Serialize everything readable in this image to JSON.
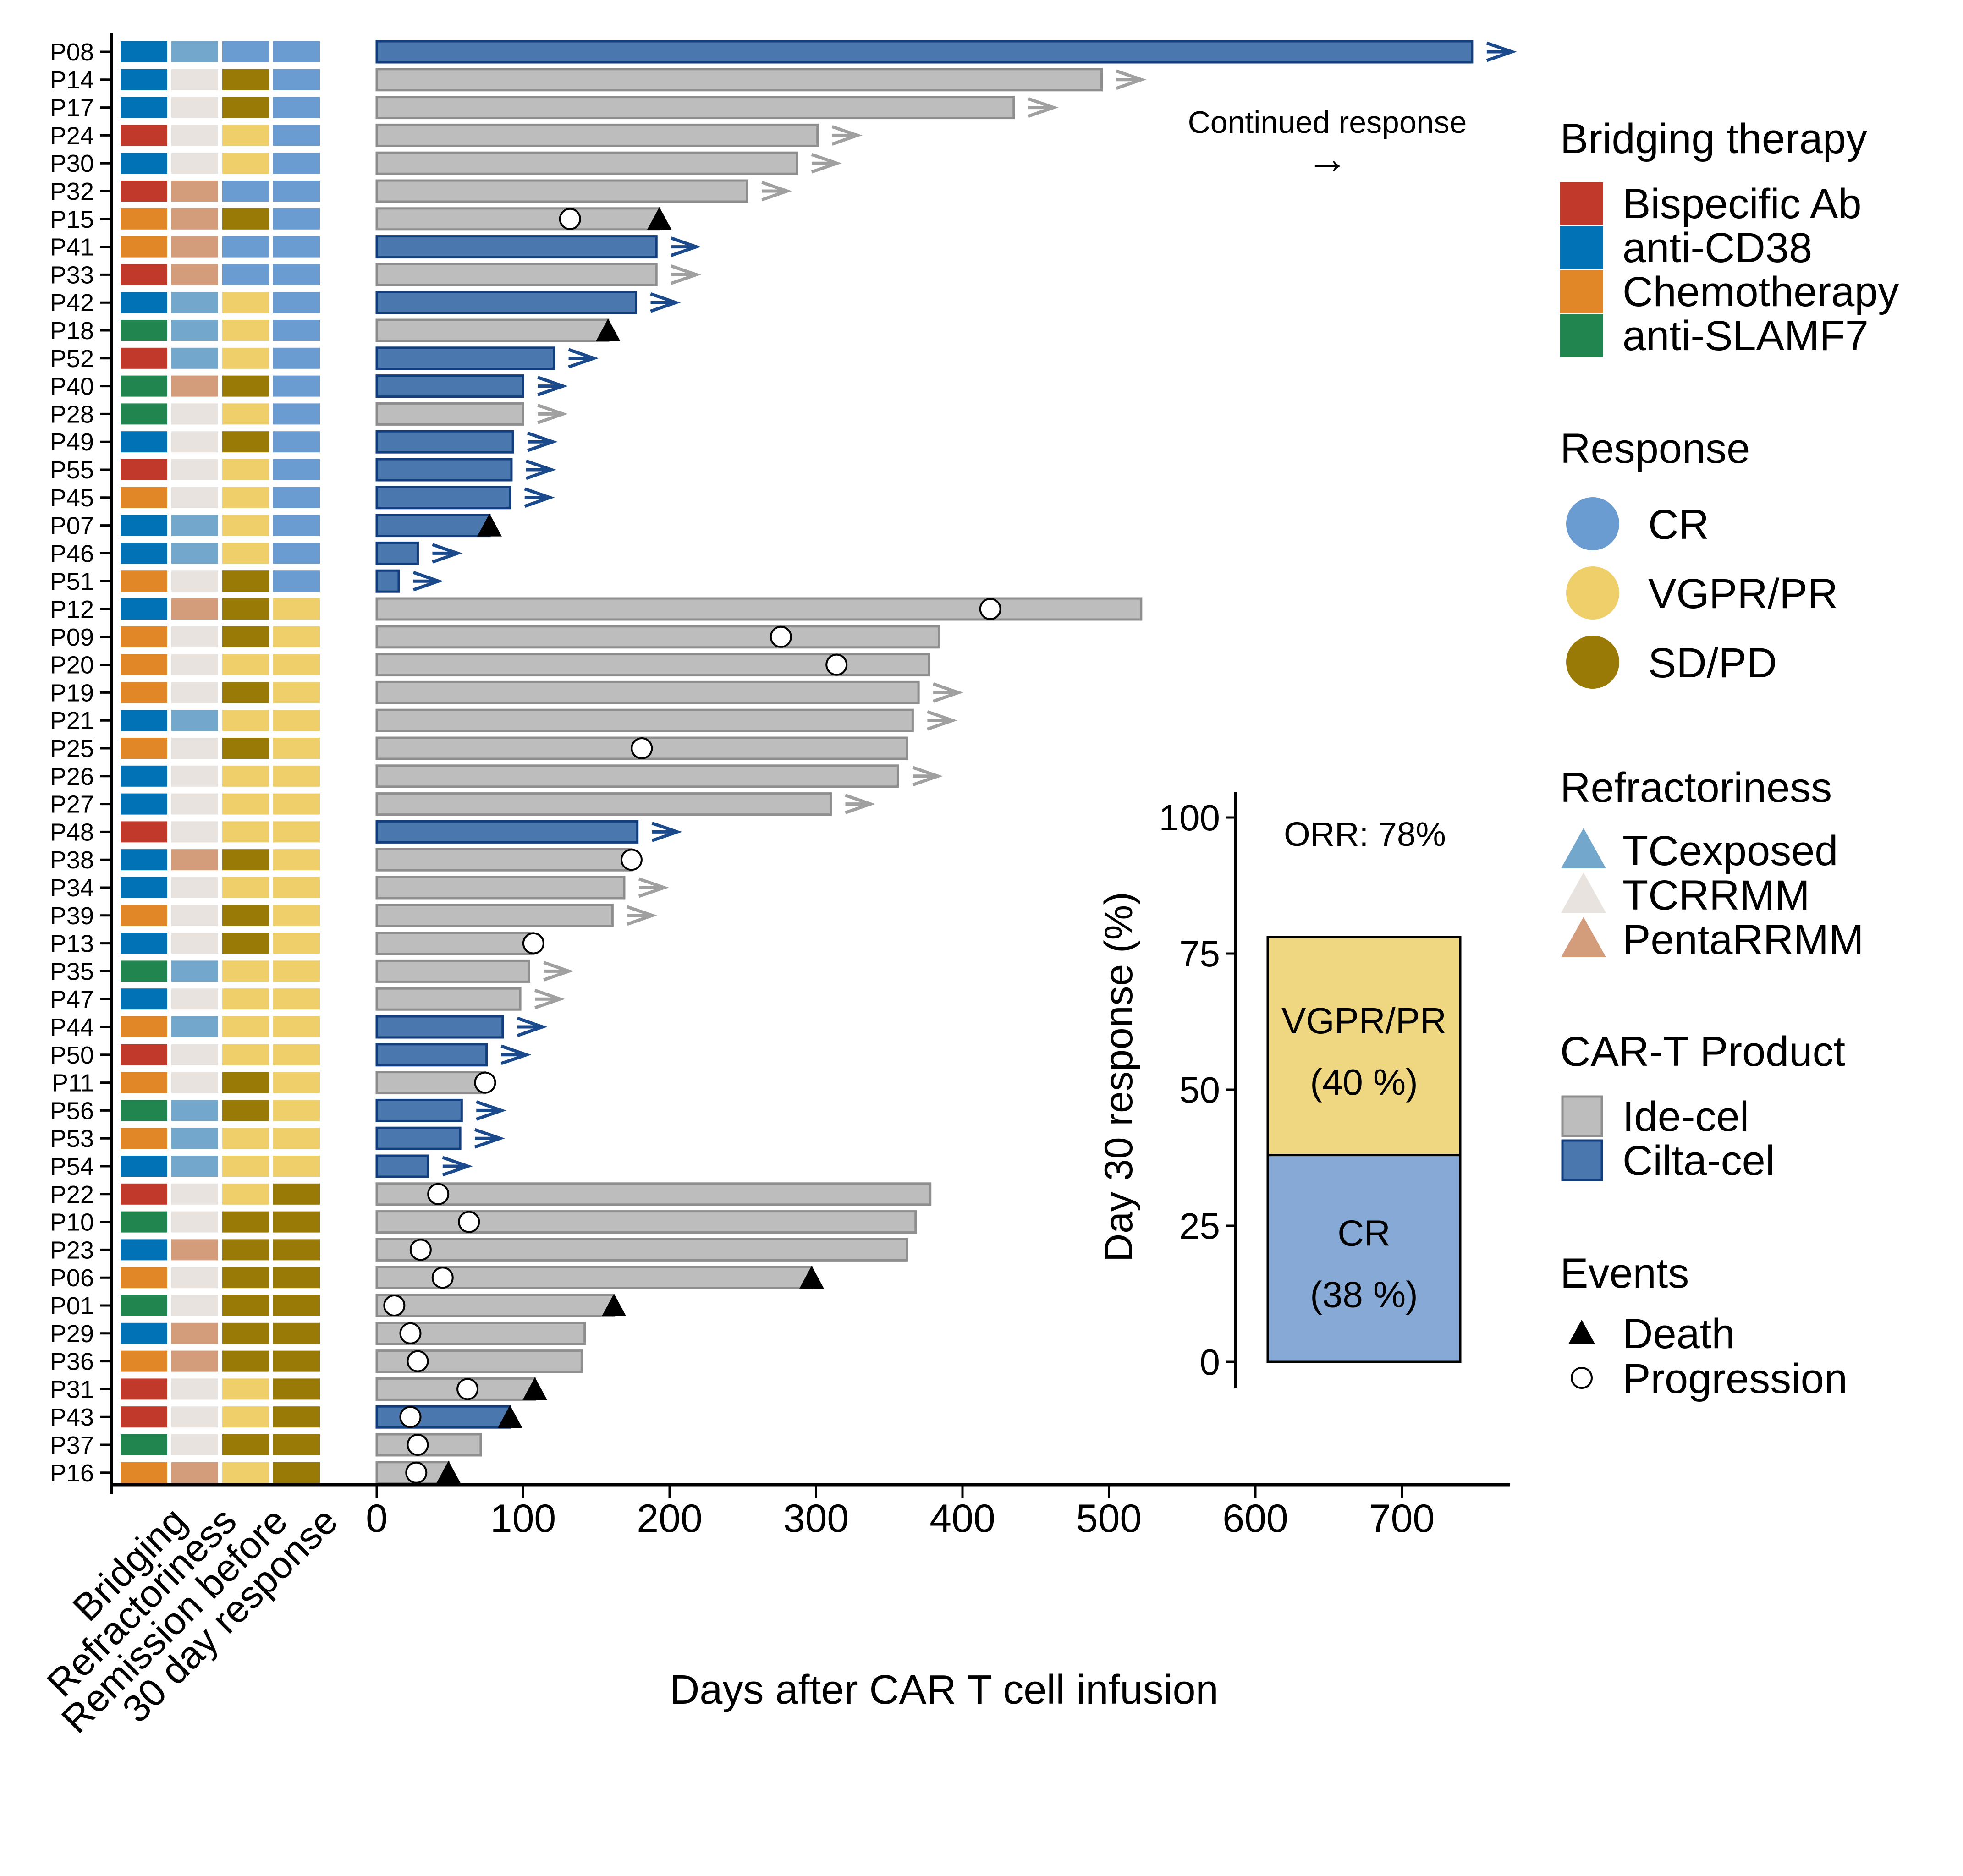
{
  "chart_data": [
    {
      "type": "bar",
      "orientation": "horizontal",
      "xlabel": "Days after CAR T cell infusion",
      "ylabel": "",
      "xlim": [
        0,
        780
      ],
      "xticks": [
        0,
        100,
        200,
        300,
        400,
        500,
        600,
        700
      ],
      "annotation": "Continued response",
      "annotation_arrow": "→",
      "heatmap_column_labels": [
        "Bridging",
        "Refractoriness",
        "Remission before",
        "30 day response"
      ],
      "colors": {
        "bridging": {
          "Bispecific Ab": "#C0392B",
          "anti-CD38": "#0072B5",
          "Chemotherapy": "#E18727",
          "anti-SLAMF7": "#20854E"
        },
        "response": {
          "CR": "#6A9BD1",
          "VGPR/PR": "#EFCF6A",
          "SD/PD": "#9A7A06"
        },
        "refractoriness": {
          "TCexposed": "#74A7CC",
          "TCRRMM": "#E8E3DF",
          "PentaRRMM": "#D39C7A"
        },
        "product": {
          "Ide-cel": "#BDBDBD",
          "Cilta-cel": "#4A77AD"
        },
        "product_stroke": {
          "Ide-cel": "#8E8E8E",
          "Cilta-cel": "#123E7E"
        },
        "arrow": {
          "Ide-cel": "#A0A0A0",
          "Cilta-cel": "#1A4A8C"
        }
      },
      "patients": [
        {
          "id": "P08",
          "bridging": "anti-CD38",
          "refractoriness": "TCexposed",
          "remission_before": "CR",
          "response30": "CR",
          "product": "Cilta-cel",
          "days": 748,
          "continued": true,
          "progression": null,
          "death": null
        },
        {
          "id": "P14",
          "bridging": "anti-CD38",
          "refractoriness": "TCRRMM",
          "remission_before": "SD/PD",
          "response30": "CR",
          "product": "Ide-cel",
          "days": 495,
          "continued": true,
          "progression": null,
          "death": null
        },
        {
          "id": "P17",
          "bridging": "anti-CD38",
          "refractoriness": "TCRRMM",
          "remission_before": "SD/PD",
          "response30": "CR",
          "product": "Ide-cel",
          "days": 435,
          "continued": true,
          "progression": null,
          "death": null
        },
        {
          "id": "P24",
          "bridging": "Bispecific Ab",
          "refractoriness": "TCRRMM",
          "remission_before": "VGPR/PR",
          "response30": "CR",
          "product": "Ide-cel",
          "days": 301,
          "continued": true,
          "progression": null,
          "death": null
        },
        {
          "id": "P30",
          "bridging": "anti-CD38",
          "refractoriness": "TCRRMM",
          "remission_before": "VGPR/PR",
          "response30": "CR",
          "product": "Ide-cel",
          "days": 287,
          "continued": true,
          "progression": null,
          "death": null
        },
        {
          "id": "P32",
          "bridging": "Bispecific Ab",
          "refractoriness": "PentaRRMM",
          "remission_before": "CR",
          "response30": "CR",
          "product": "Ide-cel",
          "days": 253,
          "continued": true,
          "progression": null,
          "death": null
        },
        {
          "id": "P15",
          "bridging": "Chemotherapy",
          "refractoriness": "PentaRRMM",
          "remission_before": "SD/PD",
          "response30": "CR",
          "product": "Ide-cel",
          "days": 193,
          "continued": false,
          "progression": 132,
          "death": 193
        },
        {
          "id": "P41",
          "bridging": "Chemotherapy",
          "refractoriness": "PentaRRMM",
          "remission_before": "CR",
          "response30": "CR",
          "product": "Cilta-cel",
          "days": 191,
          "continued": true,
          "progression": null,
          "death": null
        },
        {
          "id": "P33",
          "bridging": "Bispecific Ab",
          "refractoriness": "PentaRRMM",
          "remission_before": "CR",
          "response30": "CR",
          "product": "Ide-cel",
          "days": 191,
          "continued": true,
          "progression": null,
          "death": null
        },
        {
          "id": "P42",
          "bridging": "anti-CD38",
          "refractoriness": "TCexposed",
          "remission_before": "VGPR/PR",
          "response30": "CR",
          "product": "Cilta-cel",
          "days": 177,
          "continued": true,
          "progression": null,
          "death": null
        },
        {
          "id": "P18",
          "bridging": "anti-SLAMF7",
          "refractoriness": "TCexposed",
          "remission_before": "VGPR/PR",
          "response30": "CR",
          "product": "Ide-cel",
          "days": 158,
          "continued": false,
          "progression": null,
          "death": 158
        },
        {
          "id": "P52",
          "bridging": "Bispecific Ab",
          "refractoriness": "TCexposed",
          "remission_before": "VGPR/PR",
          "response30": "CR",
          "product": "Cilta-cel",
          "days": 121,
          "continued": true,
          "progression": null,
          "death": null
        },
        {
          "id": "P40",
          "bridging": "anti-SLAMF7",
          "refractoriness": "PentaRRMM",
          "remission_before": "SD/PD",
          "response30": "CR",
          "product": "Cilta-cel",
          "days": 100,
          "continued": true,
          "progression": null,
          "death": null
        },
        {
          "id": "P28",
          "bridging": "anti-SLAMF7",
          "refractoriness": "TCRRMM",
          "remission_before": "VGPR/PR",
          "response30": "CR",
          "product": "Ide-cel",
          "days": 100,
          "continued": true,
          "progression": null,
          "death": null
        },
        {
          "id": "P49",
          "bridging": "anti-CD38",
          "refractoriness": "TCRRMM",
          "remission_before": "SD/PD",
          "response30": "CR",
          "product": "Cilta-cel",
          "days": 93,
          "continued": true,
          "progression": null,
          "death": null
        },
        {
          "id": "P55",
          "bridging": "Bispecific Ab",
          "refractoriness": "TCRRMM",
          "remission_before": "VGPR/PR",
          "response30": "CR",
          "product": "Cilta-cel",
          "days": 92,
          "continued": true,
          "progression": null,
          "death": null
        },
        {
          "id": "P45",
          "bridging": "Chemotherapy",
          "refractoriness": "TCRRMM",
          "remission_before": "VGPR/PR",
          "response30": "CR",
          "product": "Cilta-cel",
          "days": 91,
          "continued": true,
          "progression": null,
          "death": null
        },
        {
          "id": "P07",
          "bridging": "anti-CD38",
          "refractoriness": "TCexposed",
          "remission_before": "VGPR/PR",
          "response30": "CR",
          "product": "Cilta-cel",
          "days": 77,
          "continued": false,
          "progression": null,
          "death": 77
        },
        {
          "id": "P46",
          "bridging": "anti-CD38",
          "refractoriness": "TCexposed",
          "remission_before": "VGPR/PR",
          "response30": "CR",
          "product": "Cilta-cel",
          "days": 28,
          "continued": true,
          "progression": null,
          "death": null
        },
        {
          "id": "P51",
          "bridging": "Chemotherapy",
          "refractoriness": "TCRRMM",
          "remission_before": "SD/PD",
          "response30": "CR",
          "product": "Cilta-cel",
          "days": 15,
          "continued": true,
          "progression": null,
          "death": null
        },
        {
          "id": "P12",
          "bridging": "anti-CD38",
          "refractoriness": "PentaRRMM",
          "remission_before": "SD/PD",
          "response30": "VGPR/PR",
          "product": "Ide-cel",
          "days": 522,
          "continued": false,
          "progression": 419,
          "death": null
        },
        {
          "id": "P09",
          "bridging": "Chemotherapy",
          "refractoriness": "TCRRMM",
          "remission_before": "SD/PD",
          "response30": "VGPR/PR",
          "product": "Ide-cel",
          "days": 384,
          "continued": false,
          "progression": 276,
          "death": null
        },
        {
          "id": "P20",
          "bridging": "Chemotherapy",
          "refractoriness": "TCRRMM",
          "remission_before": "VGPR/PR",
          "response30": "VGPR/PR",
          "product": "Ide-cel",
          "days": 377,
          "continued": false,
          "progression": 314,
          "death": null
        },
        {
          "id": "P19",
          "bridging": "Chemotherapy",
          "refractoriness": "TCRRMM",
          "remission_before": "SD/PD",
          "response30": "VGPR/PR",
          "product": "Ide-cel",
          "days": 370,
          "continued": true,
          "progression": null,
          "death": null
        },
        {
          "id": "P21",
          "bridging": "anti-CD38",
          "refractoriness": "TCexposed",
          "remission_before": "VGPR/PR",
          "response30": "VGPR/PR",
          "product": "Ide-cel",
          "days": 366,
          "continued": true,
          "progression": null,
          "death": null
        },
        {
          "id": "P25",
          "bridging": "Chemotherapy",
          "refractoriness": "TCRRMM",
          "remission_before": "SD/PD",
          "response30": "VGPR/PR",
          "product": "Ide-cel",
          "days": 362,
          "continued": false,
          "progression": 181,
          "death": null
        },
        {
          "id": "P26",
          "bridging": "anti-CD38",
          "refractoriness": "TCRRMM",
          "remission_before": "VGPR/PR",
          "response30": "VGPR/PR",
          "product": "Ide-cel",
          "days": 356,
          "continued": true,
          "progression": null,
          "death": null
        },
        {
          "id": "P27",
          "bridging": "anti-CD38",
          "refractoriness": "TCRRMM",
          "remission_before": "VGPR/PR",
          "response30": "VGPR/PR",
          "product": "Ide-cel",
          "days": 310,
          "continued": true,
          "progression": null,
          "death": null
        },
        {
          "id": "P48",
          "bridging": "Bispecific Ab",
          "refractoriness": "TCRRMM",
          "remission_before": "VGPR/PR",
          "response30": "VGPR/PR",
          "product": "Cilta-cel",
          "days": 178,
          "continued": true,
          "progression": null,
          "death": null
        },
        {
          "id": "P38",
          "bridging": "anti-CD38",
          "refractoriness": "PentaRRMM",
          "remission_before": "SD/PD",
          "response30": "VGPR/PR",
          "product": "Ide-cel",
          "days": 174,
          "continued": false,
          "progression": 174,
          "death": null
        },
        {
          "id": "P34",
          "bridging": "anti-CD38",
          "refractoriness": "TCRRMM",
          "remission_before": "VGPR/PR",
          "response30": "VGPR/PR",
          "product": "Ide-cel",
          "days": 169,
          "continued": true,
          "progression": null,
          "death": null
        },
        {
          "id": "P39",
          "bridging": "Chemotherapy",
          "refractoriness": "TCRRMM",
          "remission_before": "SD/PD",
          "response30": "VGPR/PR",
          "product": "Ide-cel",
          "days": 161,
          "continued": true,
          "progression": null,
          "death": null
        },
        {
          "id": "P13",
          "bridging": "anti-CD38",
          "refractoriness": "TCRRMM",
          "remission_before": "SD/PD",
          "response30": "VGPR/PR",
          "product": "Ide-cel",
          "days": 107,
          "continued": false,
          "progression": 107,
          "death": null
        },
        {
          "id": "P35",
          "bridging": "anti-SLAMF7",
          "refractoriness": "TCexposed",
          "remission_before": "VGPR/PR",
          "response30": "VGPR/PR",
          "product": "Ide-cel",
          "days": 104,
          "continued": true,
          "progression": null,
          "death": null
        },
        {
          "id": "P47",
          "bridging": "anti-CD38",
          "refractoriness": "TCRRMM",
          "remission_before": "VGPR/PR",
          "response30": "VGPR/PR",
          "product": "Ide-cel",
          "days": 98,
          "continued": true,
          "progression": null,
          "death": null
        },
        {
          "id": "P44",
          "bridging": "Chemotherapy",
          "refractoriness": "TCexposed",
          "remission_before": "VGPR/PR",
          "response30": "VGPR/PR",
          "product": "Cilta-cel",
          "days": 86,
          "continued": true,
          "progression": null,
          "death": null
        },
        {
          "id": "P50",
          "bridging": "Bispecific Ab",
          "refractoriness": "TCRRMM",
          "remission_before": "VGPR/PR",
          "response30": "VGPR/PR",
          "product": "Cilta-cel",
          "days": 75,
          "continued": true,
          "progression": null,
          "death": null
        },
        {
          "id": "P11",
          "bridging": "Chemotherapy",
          "refractoriness": "TCRRMM",
          "remission_before": "SD/PD",
          "response30": "VGPR/PR",
          "product": "Ide-cel",
          "days": 74,
          "continued": false,
          "progression": 74,
          "death": null
        },
        {
          "id": "P56",
          "bridging": "anti-SLAMF7",
          "refractoriness": "TCexposed",
          "remission_before": "SD/PD",
          "response30": "VGPR/PR",
          "product": "Cilta-cel",
          "days": 58,
          "continued": true,
          "progression": null,
          "death": null
        },
        {
          "id": "P53",
          "bridging": "Chemotherapy",
          "refractoriness": "TCexposed",
          "remission_before": "VGPR/PR",
          "response30": "VGPR/PR",
          "product": "Cilta-cel",
          "days": 57,
          "continued": true,
          "progression": null,
          "death": null
        },
        {
          "id": "P54",
          "bridging": "anti-CD38",
          "refractoriness": "TCexposed",
          "remission_before": "VGPR/PR",
          "response30": "VGPR/PR",
          "product": "Cilta-cel",
          "days": 35,
          "continued": true,
          "progression": null,
          "death": null
        },
        {
          "id": "P22",
          "bridging": "Bispecific Ab",
          "refractoriness": "TCRRMM",
          "remission_before": "VGPR/PR",
          "response30": "SD/PD",
          "product": "Ide-cel",
          "days": 378,
          "continued": false,
          "progression": 42,
          "death": null
        },
        {
          "id": "P10",
          "bridging": "anti-SLAMF7",
          "refractoriness": "TCRRMM",
          "remission_before": "SD/PD",
          "response30": "SD/PD",
          "product": "Ide-cel",
          "days": 368,
          "continued": false,
          "progression": 63,
          "death": null
        },
        {
          "id": "P23",
          "bridging": "anti-CD38",
          "refractoriness": "PentaRRMM",
          "remission_before": "SD/PD",
          "response30": "SD/PD",
          "product": "Ide-cel",
          "days": 362,
          "continued": false,
          "progression": 30,
          "death": null
        },
        {
          "id": "P06",
          "bridging": "Chemotherapy",
          "refractoriness": "TCRRMM",
          "remission_before": "SD/PD",
          "response30": "SD/PD",
          "product": "Ide-cel",
          "days": 297,
          "continued": false,
          "progression": 45,
          "death": 297
        },
        {
          "id": "P01",
          "bridging": "anti-SLAMF7",
          "refractoriness": "TCRRMM",
          "remission_before": "SD/PD",
          "response30": "SD/PD",
          "product": "Ide-cel",
          "days": 162,
          "continued": false,
          "progression": 12,
          "death": 162
        },
        {
          "id": "P29",
          "bridging": "anti-CD38",
          "refractoriness": "PentaRRMM",
          "remission_before": "SD/PD",
          "response30": "SD/PD",
          "product": "Ide-cel",
          "days": 142,
          "continued": false,
          "progression": 23,
          "death": null
        },
        {
          "id": "P36",
          "bridging": "Chemotherapy",
          "refractoriness": "PentaRRMM",
          "remission_before": "SD/PD",
          "response30": "SD/PD",
          "product": "Ide-cel",
          "days": 140,
          "continued": false,
          "progression": 28,
          "death": null
        },
        {
          "id": "P31",
          "bridging": "Bispecific Ab",
          "refractoriness": "TCRRMM",
          "remission_before": "VGPR/PR",
          "response30": "SD/PD",
          "product": "Ide-cel",
          "days": 108,
          "continued": false,
          "progression": 62,
          "death": 108
        },
        {
          "id": "P43",
          "bridging": "Bispecific Ab",
          "refractoriness": "TCRRMM",
          "remission_before": "VGPR/PR",
          "response30": "SD/PD",
          "product": "Cilta-cel",
          "days": 91,
          "continued": false,
          "progression": 23,
          "death": 91
        },
        {
          "id": "P37",
          "bridging": "anti-SLAMF7",
          "refractoriness": "TCRRMM",
          "remission_before": "SD/PD",
          "response30": "SD/PD",
          "product": "Ide-cel",
          "days": 71,
          "continued": false,
          "progression": 28,
          "death": null
        },
        {
          "id": "P16",
          "bridging": "Chemotherapy",
          "refractoriness": "PentaRRMM",
          "remission_before": "VGPR/PR",
          "response30": "SD/PD",
          "product": "Ide-cel",
          "days": 49,
          "continued": false,
          "progression": 27,
          "death": 49
        }
      ]
    },
    {
      "type": "bar",
      "stacked": true,
      "ylabel": "Day 30 response (%)",
      "ylim": [
        0,
        100
      ],
      "yticks": [
        0,
        25,
        50,
        75,
        100
      ],
      "annotation": "ORR: 78%",
      "series": [
        {
          "name": "CR",
          "value": 38,
          "label": "(38 %)",
          "color": "#86A9D6"
        },
        {
          "name": "VGPR/PR",
          "value": 40,
          "label": "(40 %)",
          "color": "#EFD681"
        }
      ]
    }
  ],
  "legend": {
    "bridging": {
      "title": "Bridging therapy",
      "items": [
        "Bispecific Ab",
        "anti-CD38",
        "Chemotherapy",
        "anti-SLAMF7"
      ]
    },
    "response": {
      "title": "Response",
      "items": [
        "CR",
        "VGPR/PR",
        "SD/PD"
      ]
    },
    "refractoriness": {
      "title": "Refractoriness",
      "items": [
        "TCexposed",
        "TCRRMM",
        "PentaRRMM"
      ]
    },
    "product": {
      "title": "CAR-T Product",
      "items": [
        "Ide-cel",
        "Cilta-cel"
      ]
    },
    "events": {
      "title": "Events",
      "items": [
        "Death",
        "Progression"
      ]
    }
  }
}
